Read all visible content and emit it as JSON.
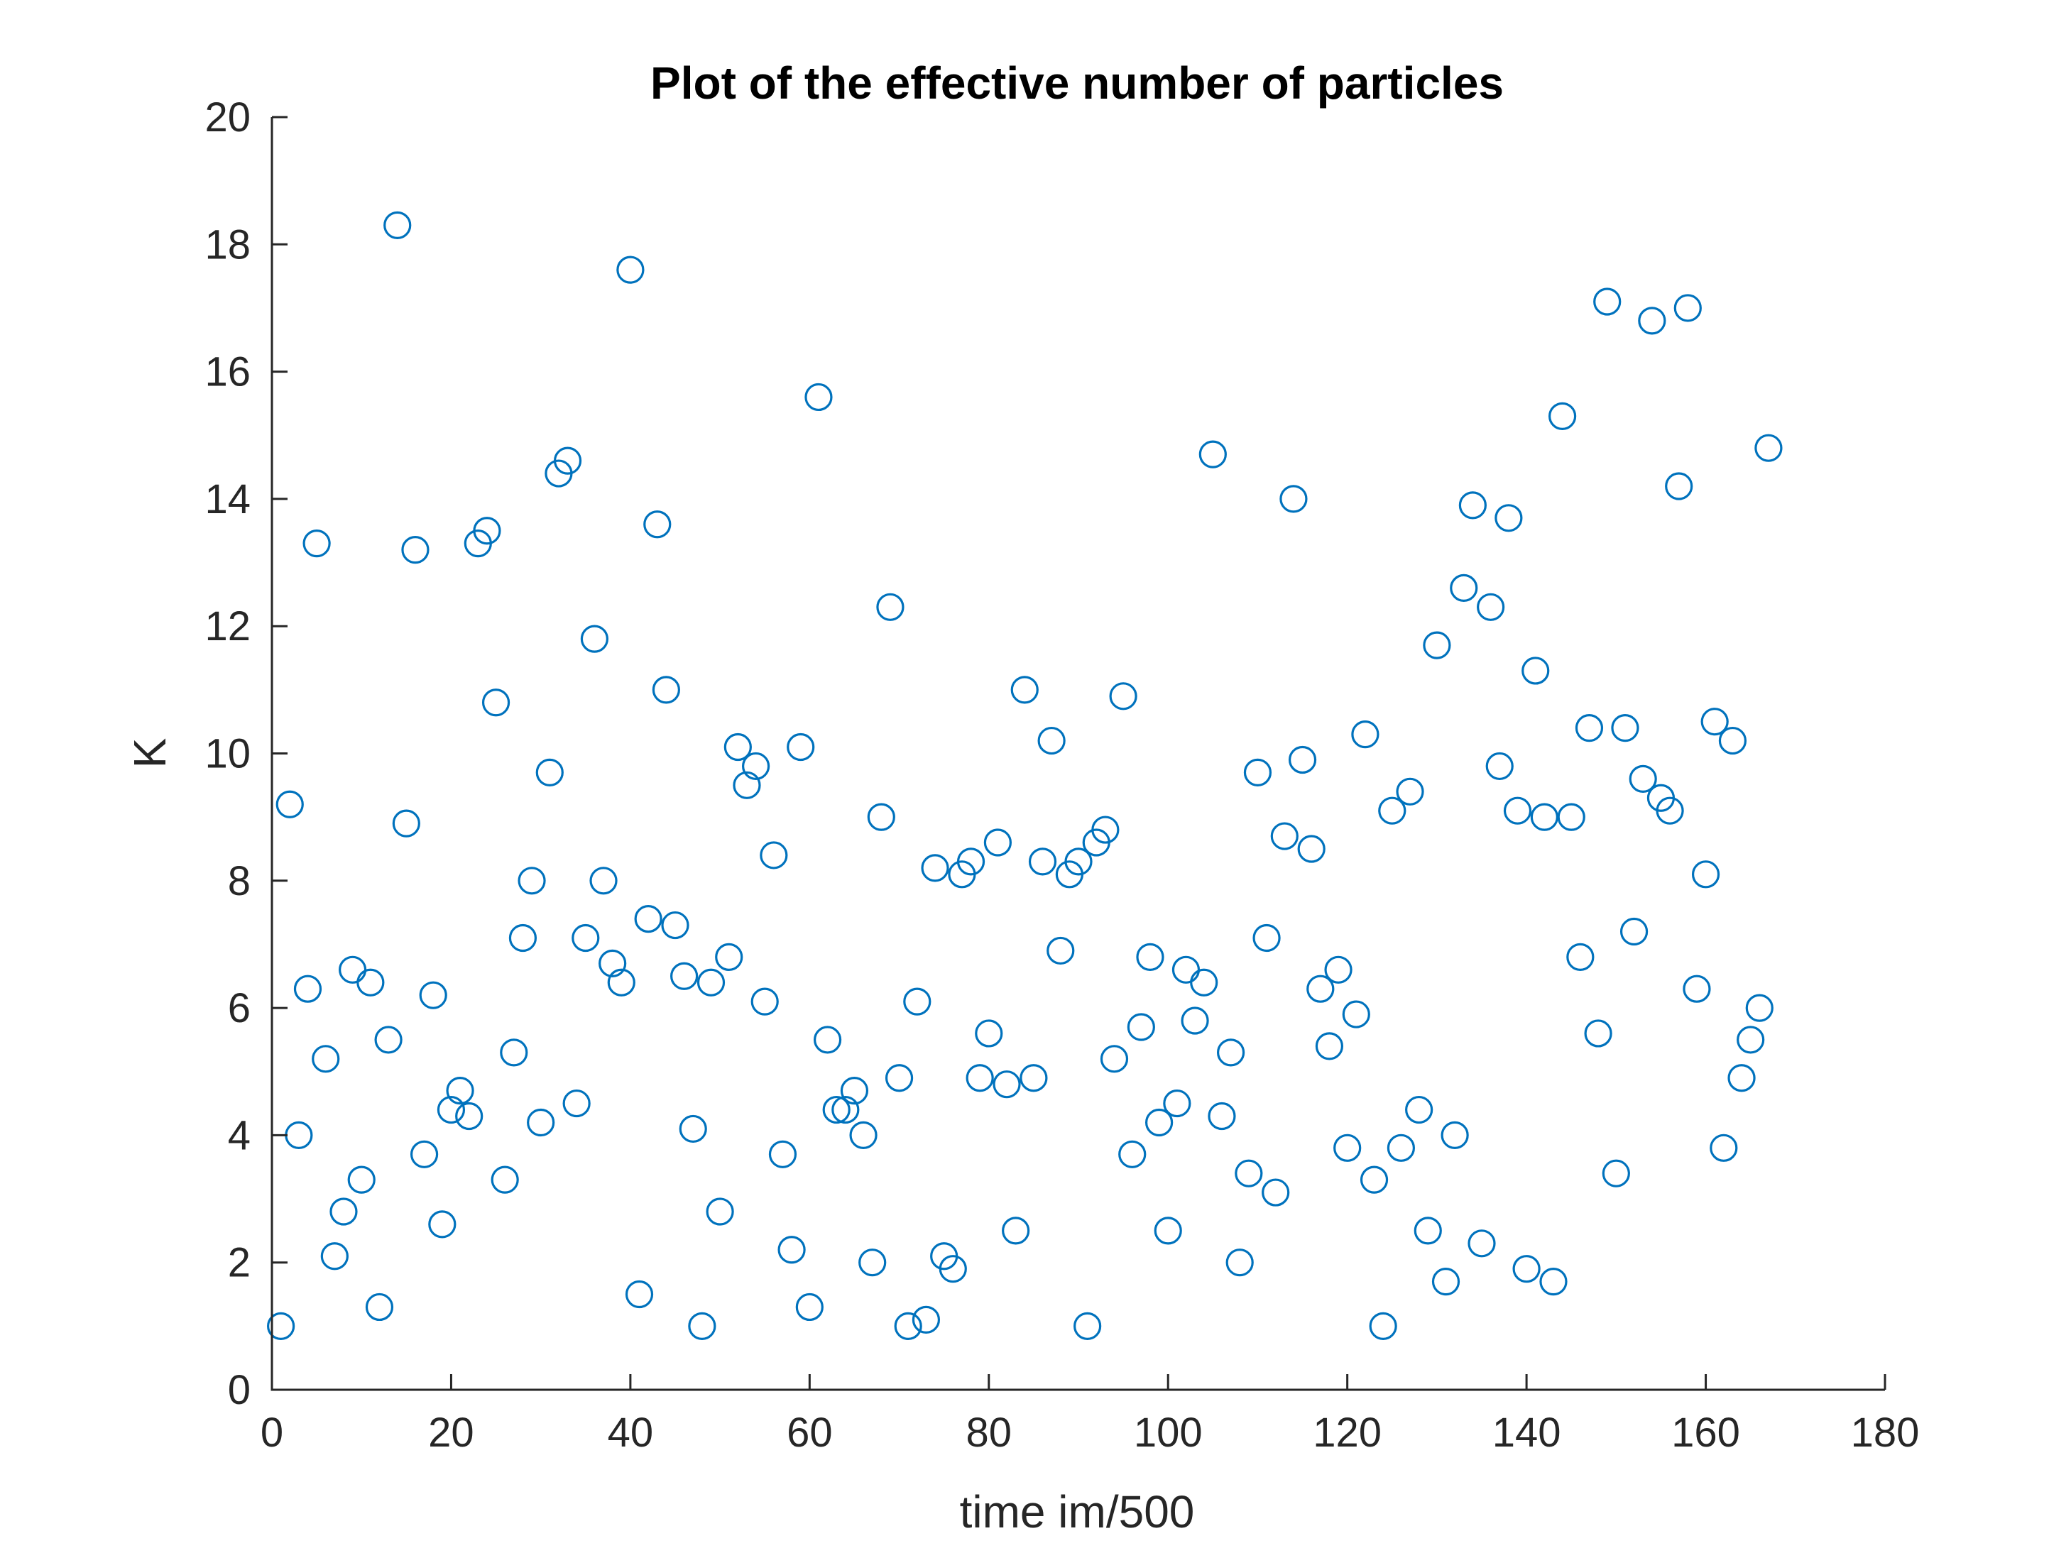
{
  "chart_data": {
    "type": "scatter",
    "title": "Plot of the effective number of particles",
    "xlabel": "time im/500",
    "ylabel": "K",
    "xlim": [
      0,
      180
    ],
    "ylim": [
      0,
      20
    ],
    "xticks": [
      "0",
      "20",
      "40",
      "60",
      "80",
      "100",
      "120",
      "140",
      "160",
      "180"
    ],
    "yticks": [
      "0",
      "2",
      "4",
      "6",
      "8",
      "10",
      "12",
      "14",
      "16",
      "18",
      "20"
    ],
    "grid": false,
    "marker": "open-circle",
    "color": "#0072BD",
    "x": [
      1,
      2,
      3,
      4,
      5,
      6,
      7,
      8,
      9,
      10,
      11,
      12,
      13,
      14,
      15,
      16,
      17,
      18,
      19,
      20,
      21,
      22,
      23,
      24,
      25,
      26,
      27,
      28,
      29,
      30,
      31,
      32,
      33,
      34,
      35,
      36,
      37,
      38,
      39,
      40,
      41,
      42,
      43,
      44,
      45,
      46,
      47,
      48,
      49,
      50,
      51,
      52,
      53,
      54,
      55,
      56,
      57,
      58,
      59,
      60,
      61,
      62,
      63,
      64,
      65,
      66,
      67,
      68,
      69,
      70,
      71,
      72,
      73,
      74,
      75,
      76,
      77,
      78,
      79,
      80,
      81,
      82,
      83,
      84,
      85,
      86,
      87,
      88,
      89,
      90,
      91,
      92,
      93,
      94,
      95,
      96,
      97,
      98,
      99,
      100,
      101,
      102,
      103,
      104,
      105,
      106,
      107,
      108,
      109,
      110,
      111,
      112,
      113,
      114,
      115,
      116,
      117,
      118,
      119,
      120,
      121,
      122,
      123,
      124,
      125,
      126,
      127,
      128,
      129,
      130,
      131,
      132,
      133,
      134,
      135,
      136,
      137,
      138,
      139,
      140,
      141,
      142,
      143,
      144,
      145,
      146,
      147,
      148,
      149,
      150,
      151,
      152,
      153,
      154,
      155,
      156,
      157,
      158,
      159,
      160,
      161,
      162,
      163,
      164,
      165,
      166,
      167
    ],
    "y": [
      1.0,
      9.2,
      4.0,
      6.3,
      13.3,
      5.2,
      2.1,
      2.8,
      6.6,
      3.3,
      6.4,
      1.3,
      5.5,
      18.3,
      8.9,
      13.2,
      3.7,
      6.2,
      2.6,
      4.4,
      4.7,
      4.3,
      13.3,
      13.5,
      10.8,
      3.3,
      5.3,
      7.1,
      8.0,
      4.2,
      9.7,
      14.4,
      14.6,
      4.5,
      7.1,
      11.8,
      8.0,
      6.7,
      6.4,
      17.6,
      1.5,
      7.4,
      13.6,
      11.0,
      7.3,
      6.5,
      4.1,
      1.0,
      6.4,
      2.8,
      6.8,
      10.1,
      9.5,
      9.8,
      6.1,
      8.4,
      3.7,
      2.2,
      10.1,
      1.3,
      15.6,
      5.5,
      4.4,
      4.4,
      4.7,
      4.0,
      2.0,
      9.0,
      12.3,
      4.9,
      1.0,
      6.1,
      1.1,
      8.2,
      2.1,
      1.9,
      8.1,
      8.3,
      4.9,
      5.6,
      8.6,
      4.8,
      2.5,
      11.0,
      4.9,
      8.3,
      10.2,
      6.9,
      8.1,
      8.3,
      1.0,
      8.6,
      8.8,
      5.2,
      10.9,
      3.7,
      5.7,
      6.8,
      4.2,
      2.5,
      4.5,
      6.6,
      5.8,
      6.4,
      14.7,
      4.3,
      5.3,
      2.0,
      3.4,
      9.7,
      7.1,
      3.1,
      8.7,
      14.0,
      9.9,
      8.5,
      6.3,
      5.4,
      6.6,
      3.8,
      5.9,
      10.3,
      3.3,
      1.0,
      9.1,
      3.8,
      9.4,
      4.4,
      2.5,
      11.7,
      1.7,
      4.0,
      12.6,
      13.9,
      2.3,
      12.3,
      9.8,
      13.7,
      9.1,
      1.9,
      11.3,
      9.0,
      1.7,
      15.3,
      9.0,
      6.8,
      10.4,
      5.6,
      17.1,
      3.4,
      10.4,
      7.2,
      9.6,
      16.8,
      9.3,
      9.1,
      14.2,
      17.0,
      6.3,
      8.1,
      10.5,
      3.8,
      10.2,
      4.9,
      5.5,
      6.0,
      14.8
    ]
  }
}
